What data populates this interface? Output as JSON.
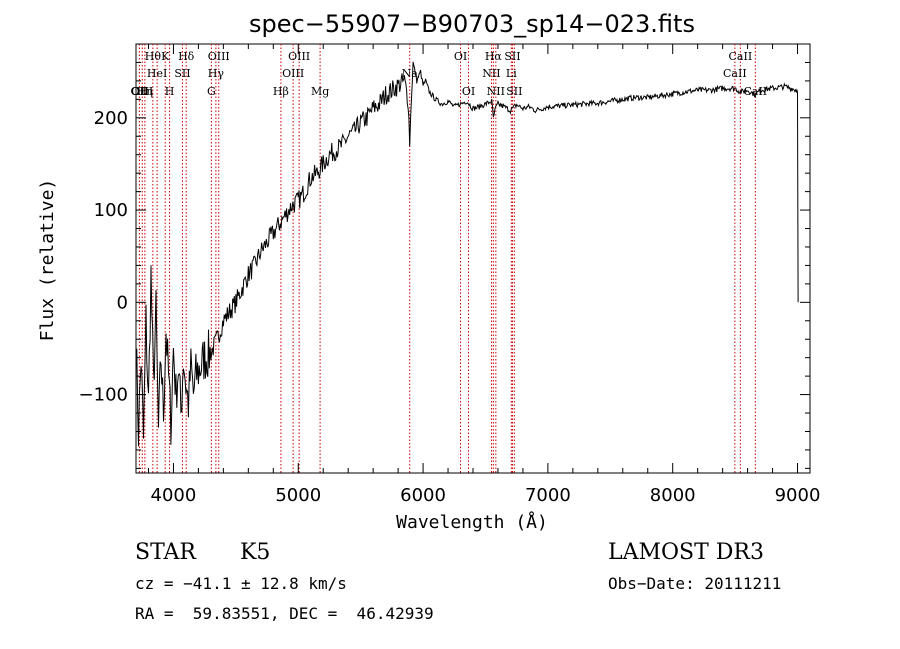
{
  "chart_data": {
    "type": "line",
    "title": "spec−55907−B90703_sp14−023.fits",
    "xlabel": "Wavelength (Å)",
    "ylabel": "Flux (relative)",
    "xlim": [
      3700,
      9100
    ],
    "ylim": [
      -185,
      280
    ],
    "xticks": [
      4000,
      5000,
      6000,
      7000,
      8000,
      9000
    ],
    "yticks": [
      -100,
      0,
      100,
      200
    ],
    "xtick_labels": [
      "4000",
      "5000",
      "6000",
      "7000",
      "8000",
      "9000"
    ],
    "ytick_labels": [
      "−100",
      "0",
      "100",
      "200"
    ],
    "line_color": "#000000",
    "marker_color": "#cc0000",
    "series": [
      {
        "name": "flux",
        "x": [
          3700,
          3720,
          3740,
          3760,
          3780,
          3800,
          3820,
          3840,
          3860,
          3880,
          3900,
          3920,
          3940,
          3960,
          3980,
          4000,
          4020,
          4040,
          4060,
          4080,
          4100,
          4120,
          4140,
          4160,
          4180,
          4200,
          4250,
          4300,
          4350,
          4400,
          4450,
          4500,
          4550,
          4600,
          4650,
          4700,
          4750,
          4800,
          4850,
          4900,
          4950,
          5000,
          5050,
          5100,
          5150,
          5200,
          5250,
          5300,
          5350,
          5400,
          5450,
          5500,
          5550,
          5600,
          5650,
          5700,
          5750,
          5800,
          5850,
          5880,
          5893,
          5900,
          5920,
          5950,
          5980,
          6000,
          6020,
          6050,
          6100,
          6150,
          6200,
          6250,
          6300,
          6350,
          6400,
          6450,
          6500,
          6550,
          6563,
          6580,
          6600,
          6650,
          6700,
          6750,
          6800,
          6850,
          6900,
          6950,
          7000,
          7100,
          7200,
          7300,
          7400,
          7500,
          7600,
          7700,
          7800,
          7900,
          8000,
          8100,
          8200,
          8300,
          8400,
          8500,
          8542,
          8600,
          8662,
          8700,
          8800,
          8900,
          8950,
          8990,
          9000,
          9005
        ],
        "y": [
          -40,
          -140,
          -60,
          -150,
          -20,
          -110,
          30,
          -90,
          -10,
          -140,
          -60,
          -120,
          -30,
          -80,
          -130,
          -50,
          -100,
          -70,
          -120,
          -60,
          -90,
          -110,
          -70,
          -100,
          -80,
          -75,
          -60,
          -55,
          -40,
          -20,
          -10,
          0,
          15,
          30,
          40,
          55,
          65,
          75,
          85,
          95,
          105,
          110,
          120,
          135,
          140,
          150,
          160,
          165,
          170,
          180,
          185,
          195,
          200,
          210,
          215,
          225,
          230,
          235,
          240,
          220,
          175,
          200,
          260,
          240,
          250,
          235,
          240,
          228,
          220,
          215,
          218,
          212,
          215,
          218,
          210,
          212,
          215,
          218,
          200,
          210,
          215,
          212,
          208,
          214,
          210,
          212,
          208,
          210,
          212,
          213,
          214,
          215,
          216,
          218,
          220,
          222,
          222,
          224,
          226,
          228,
          230,
          230,
          232,
          232,
          228,
          230,
          225,
          230,
          232,
          234,
          232,
          230,
          230,
          0
        ]
      }
    ],
    "markers": [
      {
        "wl": 3727,
        "labels": [
          "OII"
        ],
        "row": 3
      },
      {
        "wl": 3750,
        "labels": [
          "OIII"
        ],
        "row": 3
      },
      {
        "wl": 3771,
        "labels": [
          "Hη"
        ],
        "row": 3
      },
      {
        "wl": 3835,
        "labels": [
          "Hθ"
        ],
        "row": 1
      },
      {
        "wl": 3869,
        "labels": [
          "HeI"
        ],
        "row": 2
      },
      {
        "wl": 3934,
        "labels": [
          "K"
        ],
        "row": 1
      },
      {
        "wl": 3969,
        "labels": [
          "H"
        ],
        "row": 3
      },
      {
        "wl": 4072,
        "labels": [
          "SII"
        ],
        "row": 2
      },
      {
        "wl": 4102,
        "labels": [
          "Hδ"
        ],
        "row": 1
      },
      {
        "wl": 4304,
        "labels": [
          "G"
        ],
        "row": 3
      },
      {
        "wl": 4340,
        "labels": [
          "Hγ"
        ],
        "row": 2
      },
      {
        "wl": 4363,
        "labels": [
          "OIII"
        ],
        "row": 1
      },
      {
        "wl": 4861,
        "labels": [
          "Hβ"
        ],
        "row": 3
      },
      {
        "wl": 4959,
        "labels": [
          "OIII"
        ],
        "row": 2
      },
      {
        "wl": 5007,
        "labels": [
          "OIII"
        ],
        "row": 1
      },
      {
        "wl": 5175,
        "labels": [
          "Mg"
        ],
        "row": 3
      },
      {
        "wl": 5893,
        "labels": [
          "Na"
        ],
        "row": 2
      },
      {
        "wl": 6300,
        "labels": [
          "OI"
        ],
        "row": 1
      },
      {
        "wl": 6364,
        "labels": [
          "OI"
        ],
        "row": 3
      },
      {
        "wl": 6548,
        "labels": [
          "NII"
        ],
        "row": 2
      },
      {
        "wl": 6563,
        "labels": [
          "Hα"
        ],
        "row": 1
      },
      {
        "wl": 6583,
        "labels": [
          "NII"
        ],
        "row": 3
      },
      {
        "wl": 6707,
        "labels": [
          "Li"
        ],
        "row": 2
      },
      {
        "wl": 6716,
        "labels": [
          "SII"
        ],
        "row": 1
      },
      {
        "wl": 6731,
        "labels": [
          "SII"
        ],
        "row": 3
      },
      {
        "wl": 8498,
        "labels": [
          "CaII"
        ],
        "row": 2
      },
      {
        "wl": 8542,
        "labels": [
          "CaII"
        ],
        "row": 1
      },
      {
        "wl": 8662,
        "labels": [
          "CaII"
        ],
        "row": 3
      }
    ]
  },
  "info": {
    "class": "STAR",
    "subclass": "K5",
    "survey": "LAMOST DR3",
    "cz": "cz = −41.1 ± 12.8 km/s",
    "obsdate": "Obs−Date: 20111211",
    "radec": "RA =  59.83551, DEC =  46.42939"
  }
}
